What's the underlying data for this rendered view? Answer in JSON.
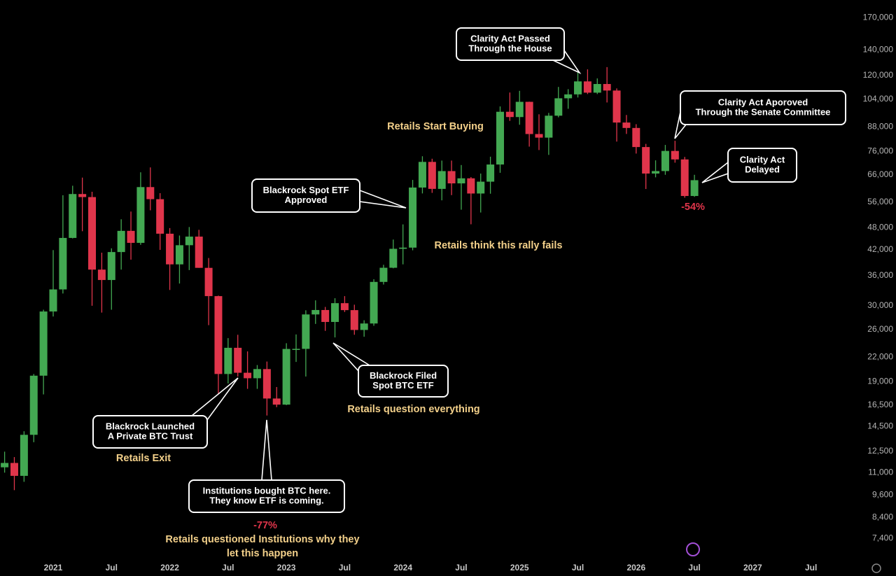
{
  "chart_data": {
    "type": "candlestick",
    "log_scale": true,
    "grid": false,
    "up_color": "#43a852",
    "down_color": "#e0354b",
    "categories": [
      null,
      null,
      null,
      null,
      null,
      "2021",
      null,
      null,
      null,
      null,
      null,
      "Jul",
      null,
      null,
      null,
      null,
      null,
      "2022",
      null,
      null,
      null,
      null,
      null,
      "Jul",
      null,
      null,
      null,
      null,
      null,
      "2023",
      null,
      null,
      null,
      null,
      null,
      "Jul",
      null,
      null,
      null,
      null,
      null,
      "2024",
      null,
      null,
      null,
      null,
      null,
      "Jul",
      null,
      null,
      null,
      null,
      null,
      "2025",
      null,
      null,
      null,
      null,
      null,
      "Jul",
      null,
      null,
      null,
      null,
      null,
      "2026",
      null,
      null,
      null,
      null,
      null,
      "Jul",
      null,
      null,
      null,
      null,
      null,
      "2027",
      null,
      null,
      null,
      null,
      null,
      "Jul"
    ],
    "open": [
      11350,
      11650,
      10780,
      13800,
      19700,
      28990,
      33110,
      45140,
      58790,
      57720,
      37300,
      35040,
      41460,
      47100,
      43820,
      61300,
      57000,
      46300,
      38500,
      43200,
      45500,
      37700,
      31800,
      19900,
      23300,
      20050,
      19400,
      20500,
      17170,
      16550,
      23140,
      23150,
      28480,
      29250,
      27220,
      30480,
      29230,
      25940,
      26970,
      34640,
      37720,
      42280,
      42580,
      61130,
      71330,
      60640,
      67490,
      62680,
      64620,
      58970,
      63330,
      70220,
      96450,
      93430,
      102400,
      84350,
      82550,
      94200,
      104600,
      107100,
      115800,
      108200,
      114000,
      109600,
      90400,
      87500,
      78000,
      66500,
      67500,
      76200,
      72400,
      58100,
      null,
      null,
      null,
      null,
      null,
      null,
      null,
      null,
      null,
      null,
      null,
      null
    ],
    "high": [
      12470,
      12070,
      14100,
      19900,
      29300,
      41950,
      58350,
      61800,
      64900,
      59600,
      41300,
      42400,
      50500,
      52900,
      67000,
      69000,
      59100,
      47900,
      45800,
      48200,
      47400,
      40000,
      31900,
      24700,
      25200,
      22800,
      21000,
      21450,
      18400,
      23950,
      25250,
      29200,
      31000,
      29800,
      31400,
      31800,
      30200,
      27500,
      35200,
      38400,
      44700,
      48970,
      64000,
      73800,
      72700,
      71900,
      71900,
      70000,
      65100,
      66500,
      73600,
      99600,
      108300,
      109400,
      102500,
      95000,
      95800,
      112000,
      110500,
      123200,
      124500,
      117900,
      126200,
      111000,
      94600,
      89500,
      79500,
      72000,
      79000,
      81000,
      73500,
      66000,
      null,
      null,
      null,
      null,
      null,
      null,
      null,
      null,
      null,
      null,
      null,
      null
    ],
    "low": [
      10990,
      9890,
      10400,
      13200,
      17600,
      28130,
      32300,
      45000,
      47000,
      30000,
      28800,
      29300,
      37300,
      39600,
      43300,
      53300,
      42000,
      33000,
      34300,
      37200,
      37700,
      26700,
      17600,
      18800,
      19600,
      18200,
      18200,
      15500,
      16300,
      16500,
      21400,
      19600,
      26900,
      25800,
      24800,
      28900,
      25200,
      24900,
      26600,
      34100,
      37600,
      38500,
      41900,
      59000,
      59200,
      56600,
      58400,
      53500,
      49000,
      52600,
      58900,
      66800,
      91300,
      89200,
      78200,
      76600,
      74400,
      93300,
      98200,
      105100,
      107300,
      107300,
      102000,
      80600,
      84400,
      75000,
      60600,
      65000,
      66000,
      71000,
      57500,
      57800,
      null,
      null,
      null,
      null,
      null,
      null,
      null,
      null,
      null,
      null,
      null,
      null
    ],
    "close": [
      11650,
      10780,
      13800,
      19700,
      28990,
      33110,
      45140,
      58790,
      57720,
      37300,
      35040,
      41460,
      47100,
      43820,
      61300,
      57000,
      46300,
      38500,
      43200,
      45500,
      37700,
      31800,
      19900,
      23300,
      20050,
      19400,
      20500,
      17170,
      16550,
      23140,
      23150,
      28480,
      29250,
      27220,
      30480,
      29230,
      25940,
      26970,
      34640,
      37720,
      42280,
      42580,
      61130,
      71330,
      60640,
      67490,
      62680,
      64620,
      58970,
      63330,
      70220,
      96450,
      93430,
      102400,
      84350,
      82550,
      94200,
      104600,
      107100,
      115800,
      108200,
      114000,
      109600,
      90400,
      87500,
      78000,
      66500,
      67500,
      76200,
      72400,
      58100,
      63900,
      null,
      null,
      null,
      null,
      null,
      null,
      null,
      null,
      null,
      null,
      null,
      null
    ],
    "ylim": [
      6500,
      189000
    ],
    "yticks": [
      {
        "value": 170000,
        "label": "170,000"
      },
      {
        "value": 140000,
        "label": "140,000"
      },
      {
        "value": 120000,
        "label": "120,000"
      },
      {
        "value": 104000,
        "label": "104,000"
      },
      {
        "value": 88000,
        "label": "88,000"
      },
      {
        "value": 76000,
        "label": "76,000"
      },
      {
        "value": 66000,
        "label": "66,000"
      },
      {
        "value": 56000,
        "label": "56,000"
      },
      {
        "value": 48000,
        "label": "48,000"
      },
      {
        "value": 42000,
        "label": "42,000"
      },
      {
        "value": 36000,
        "label": "36,000"
      },
      {
        "value": 30000,
        "label": "30,000"
      },
      {
        "value": 26000,
        "label": "26,000"
      },
      {
        "value": 22000,
        "label": "22,000"
      },
      {
        "value": 19000,
        "label": "19,000"
      },
      {
        "value": 16500,
        "label": "16,500"
      },
      {
        "value": 14500,
        "label": "14,500"
      },
      {
        "value": 12500,
        "label": "12,500"
      },
      {
        "value": 11000,
        "label": "11,000"
      },
      {
        "value": 9600,
        "label": "9,600"
      },
      {
        "value": 8400,
        "label": "8,400"
      },
      {
        "value": 7400,
        "label": "7,400"
      }
    ],
    "callouts": [
      {
        "lines": [
          "Clarity Act Passed",
          "Through the House"
        ]
      },
      {
        "lines": [
          "Clarity Act Aporoved",
          "Through the Senate Committee"
        ]
      },
      {
        "lines": [
          "Clarity Act",
          "Delayed"
        ]
      },
      {
        "lines": [
          "Blackrock Spot ETF",
          "Approved"
        ]
      },
      {
        "lines": [
          "Blackrock Filed",
          "Spot BTC ETF"
        ]
      },
      {
        "lines": [
          "Blackrock Launched",
          "A Private BTC Trust"
        ]
      },
      {
        "lines": [
          "Institutions bought BTC here.",
          "They know ETF is coming."
        ]
      }
    ],
    "notes": [
      {
        "lines": [
          "Retails Start Buying"
        ],
        "color": "#f3d08a"
      },
      {
        "lines": [
          "Retails think this rally fails"
        ],
        "color": "#f3d08a"
      },
      {
        "lines": [
          "Retails question everything"
        ],
        "color": "#f3d08a"
      },
      {
        "lines": [
          "Retails Exit"
        ],
        "color": "#f3d08a"
      },
      {
        "lines": [
          "-77%"
        ],
        "color": "#e0354b"
      },
      {
        "lines": [
          "Retails questioned Institutions why they",
          "let this happen"
        ],
        "color": "#f3d08a"
      },
      {
        "lines": [
          "-54%"
        ],
        "color": "#e0354b"
      }
    ]
  }
}
